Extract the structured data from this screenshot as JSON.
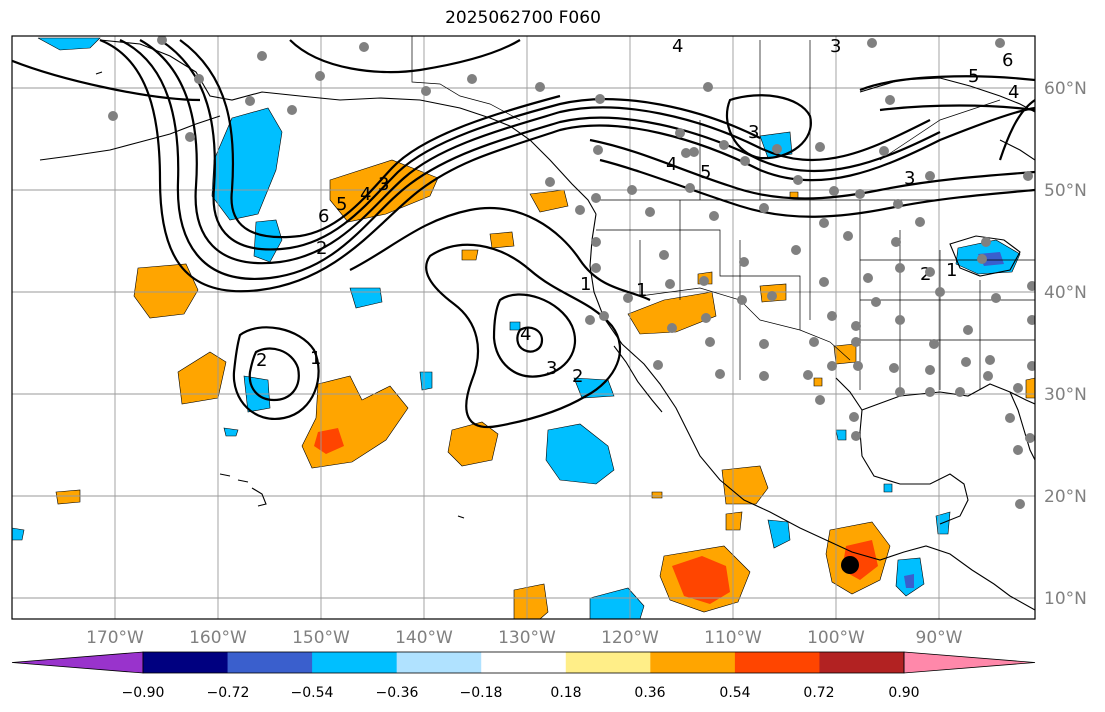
{
  "title": "2025062700 F060",
  "lon_labels": [
    "170°W",
    "160°W",
    "150°W",
    "140°W",
    "130°W",
    "120°W",
    "110°W",
    "100°W",
    "90°W"
  ],
  "lat_labels": [
    "60°N",
    "50°N",
    "40°N",
    "30°N",
    "20°N",
    "10°N"
  ],
  "colorbar": {
    "ticks": [
      "−0.90",
      "−0.72",
      "−0.54",
      "−0.36",
      "−0.18",
      "0.18",
      "0.36",
      "0.54",
      "0.72",
      "0.90"
    ],
    "colors": [
      "#9933cc",
      "#000080",
      "#3a5fcd",
      "#00bfff",
      "#b0e2ff",
      "#ffffff",
      "#ffee88",
      "#ffa500",
      "#ff4500",
      "#b22222",
      "#ff88aa"
    ]
  },
  "contour_labels": [
    "6",
    "5",
    "4",
    "3",
    "2",
    "1",
    "2",
    "1",
    "4",
    "3",
    "2",
    "1",
    "3",
    "4",
    "5",
    "4",
    "3",
    "5",
    "6",
    "4",
    "3",
    "2",
    "1"
  ],
  "colors": {
    "positive": "#ffa500",
    "strong_positive": "#ff4500",
    "negative": "#00bfff",
    "marker": "#000000",
    "station": "#808080"
  }
}
